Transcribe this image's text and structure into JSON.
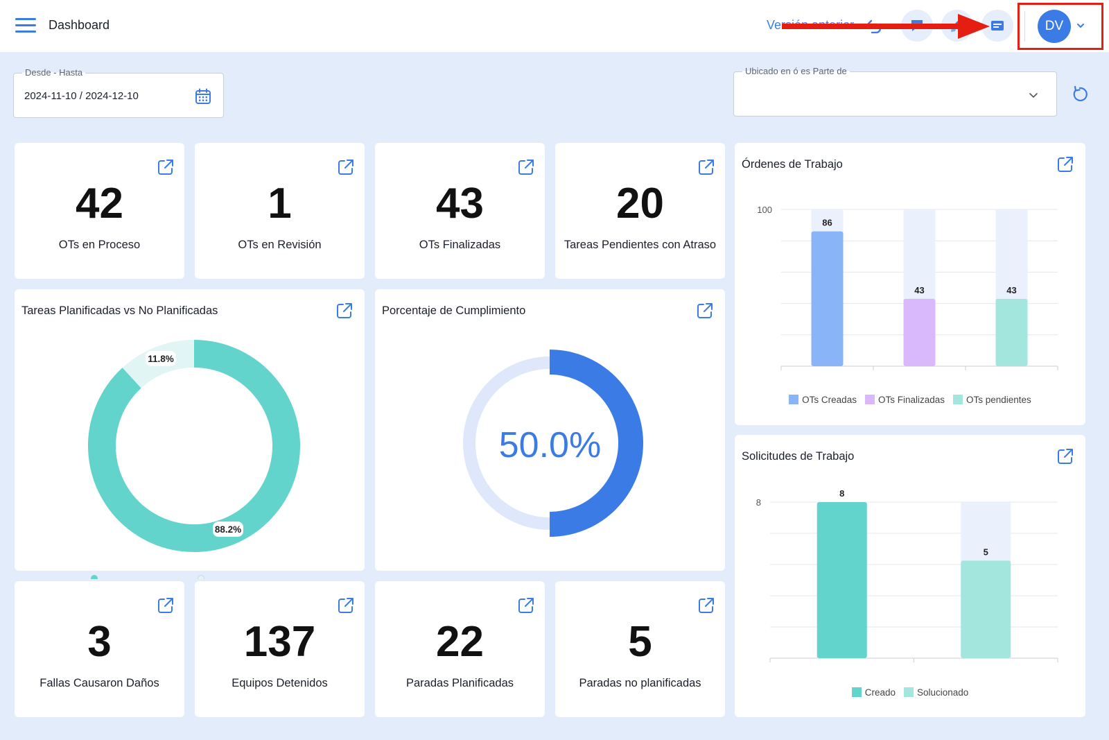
{
  "header": {
    "title": "Dashboard",
    "prev_version": "Versión anterior",
    "avatar_initials": "DV",
    "accent": "#3b7be6"
  },
  "filters": {
    "date_label": "Desde - Hasta",
    "date_value": "2024-11-10 / 2024-12-10",
    "location_label": "Ubicado en ó es Parte de",
    "location_value": ""
  },
  "kpis_top": [
    {
      "value": "42",
      "label": "OTs en Proceso"
    },
    {
      "value": "1",
      "label": "OTs en Revisión"
    },
    {
      "value": "43",
      "label": "OTs Finalizadas"
    },
    {
      "value": "20",
      "label": "Tareas Pendientes con Atraso"
    }
  ],
  "kpis_bottom": [
    {
      "value": "3",
      "label": "Fallas Causaron Daños"
    },
    {
      "value": "137",
      "label": "Equipos Detenidos"
    },
    {
      "value": "22",
      "label": "Paradas Planificadas"
    },
    {
      "value": "5",
      "label": "Paradas no planificadas"
    }
  ],
  "planned_card": {
    "title": "Tareas Planificadas vs No Planificadas"
  },
  "compliance_card": {
    "title": "Porcentaje de Cumplimiento",
    "value_label": "50.0%"
  },
  "work_orders_card": {
    "title": "Órdenes de Trabajo"
  },
  "requests_card": {
    "title": "Solicitudes de Trabajo"
  },
  "chart_data": [
    {
      "type": "pie",
      "title": "Tareas Planificadas vs No Planificadas",
      "donut": true,
      "slices": [
        {
          "value": 88.2,
          "label": "88.2%",
          "color": "#63d4cc"
        },
        {
          "value": 11.8,
          "label": "11.8%",
          "color": "#e1f6f4"
        }
      ]
    },
    {
      "type": "pie",
      "title": "Porcentaje de Cumplimiento",
      "donut": true,
      "center_label": "50.0%",
      "slices": [
        {
          "value": 50,
          "color": "#3b7be6"
        },
        {
          "value": 50,
          "color": "#dfe8fa"
        }
      ]
    },
    {
      "type": "bar",
      "title": "Órdenes de Trabajo",
      "ylim": [
        0,
        100
      ],
      "yticks": [
        "100"
      ],
      "categories": [
        "OTs Creadas",
        "OTs Finalizadas",
        "OTs pendientes"
      ],
      "values": [
        86,
        43,
        43
      ],
      "colors": [
        "#8ab4f8",
        "#d9b8fb",
        "#a3e6de"
      ],
      "track_color": "#eaf1fd",
      "legend": [
        "OTs Creadas",
        "OTs Finalizadas",
        "OTs pendientes"
      ],
      "legend_position": "bottom"
    },
    {
      "type": "bar",
      "title": "Solicitudes de Trabajo",
      "ylim": [
        0,
        8
      ],
      "yticks": [
        "8"
      ],
      "categories": [
        "Creado",
        "Solucionado"
      ],
      "values": [
        8,
        5
      ],
      "colors": [
        "#63d4cc",
        "#a3e6de"
      ],
      "track_color": "#eaf1fd",
      "legend": [
        "Creado",
        "Solucionado"
      ],
      "legend_position": "bottom"
    }
  ]
}
